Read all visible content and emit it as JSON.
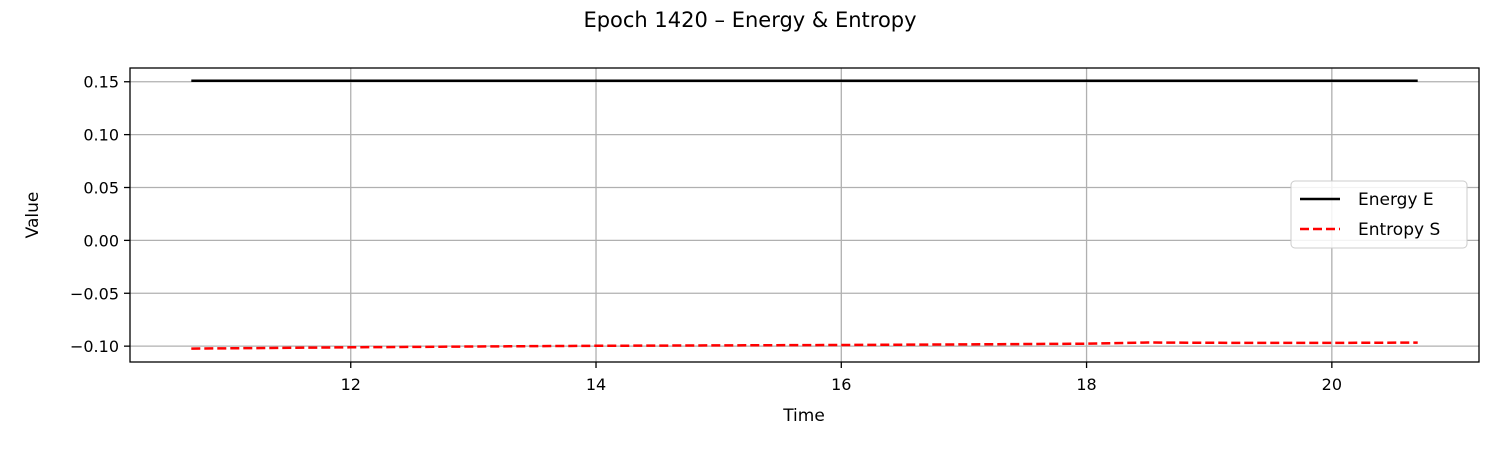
{
  "chart_data": {
    "type": "line",
    "title": "Epoch 1420 – Energy & Entropy",
    "xlabel": "Time",
    "ylabel": "Value",
    "xlim": [
      10.2,
      21.2
    ],
    "ylim": [
      -0.115,
      0.163
    ],
    "xticks": [
      12,
      14,
      16,
      18,
      20
    ],
    "xtick_labels": [
      "12",
      "14",
      "16",
      "18",
      "20"
    ],
    "yticks": [
      0.15,
      0.1,
      0.05,
      0.0,
      -0.05,
      -0.1
    ],
    "ytick_labels": [
      "0.15",
      "0.10",
      "0.05",
      "0.00",
      "−0.05",
      "−0.10"
    ],
    "grid": true,
    "legend_position": "center-right",
    "series": [
      {
        "name": "Energy E",
        "color": "#000000",
        "style": "solid",
        "x": [
          10.7,
          12,
          14,
          16,
          18,
          20,
          20.7
        ],
        "y": [
          0.151,
          0.151,
          0.151,
          0.151,
          0.151,
          0.151,
          0.151
        ]
      },
      {
        "name": "Entropy S",
        "color": "#ff0000",
        "style": "dashed",
        "x": [
          10.7,
          12,
          13,
          14,
          15,
          16,
          17,
          18,
          18.5,
          19,
          20,
          20.7
        ],
        "y": [
          -0.1023,
          -0.1011,
          -0.1003,
          -0.0997,
          -0.0993,
          -0.0989,
          -0.0984,
          -0.0977,
          -0.0966,
          -0.0968,
          -0.0969,
          -0.0967
        ]
      }
    ]
  }
}
